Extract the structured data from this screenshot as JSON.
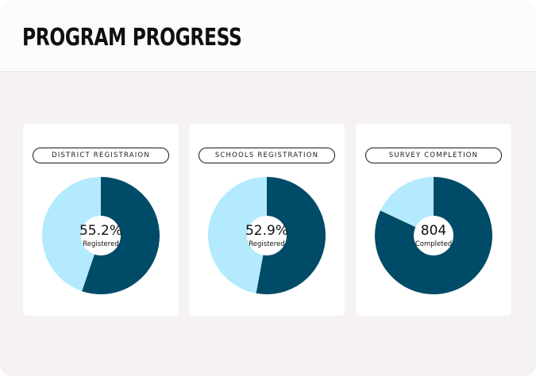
{
  "header": {
    "title": "PROGRAM PROGRESS"
  },
  "colors": {
    "dark": "#004b67",
    "light": "#b3eafd",
    "center": "#ffffff"
  },
  "cards": [
    {
      "label": "DISTRICT REGISTRAION",
      "value": "55.2%",
      "caption": "Registered",
      "fraction": 0.552
    },
    {
      "label": "SCHOOLS REGISTRATION",
      "value": "52.9%",
      "caption": "Registered",
      "fraction": 0.529
    },
    {
      "label": "SURVEY COMPLETION",
      "value": "804",
      "caption": "Completed",
      "fraction": 0.82
    }
  ]
}
